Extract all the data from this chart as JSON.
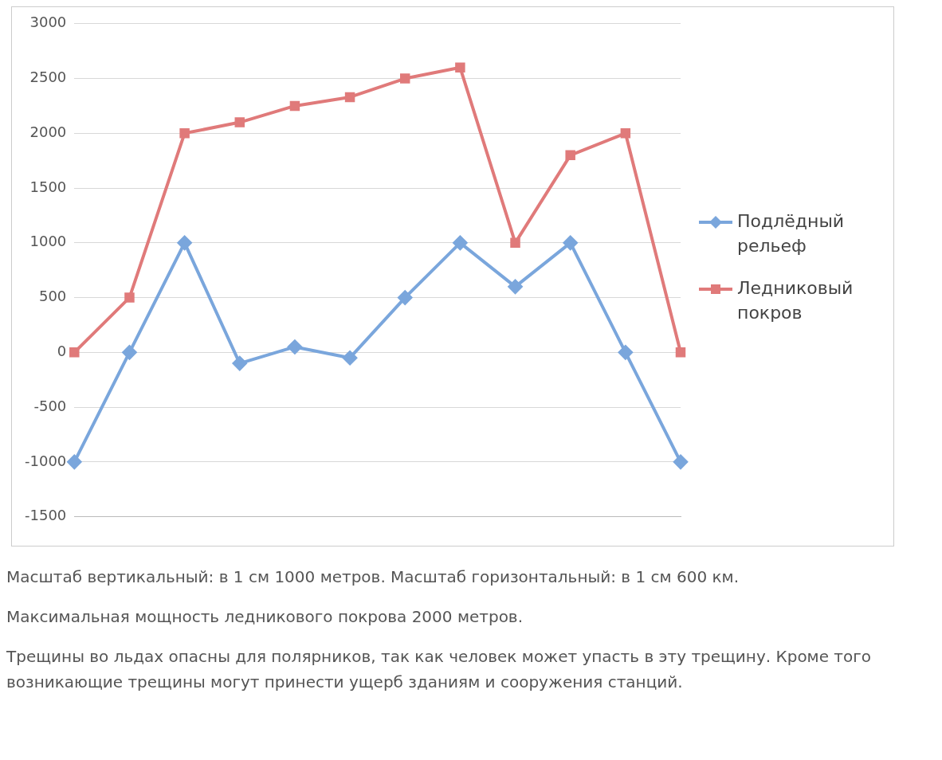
{
  "chart_data": {
    "type": "line",
    "categories": [
      null,
      null,
      null,
      null,
      null,
      null,
      null,
      null,
      null,
      null,
      null,
      null
    ],
    "series": [
      {
        "name": "Подлёдный рельеф",
        "color": "#7aa6dc",
        "marker": "diamond",
        "values": [
          -1000,
          0,
          1000,
          -100,
          50,
          -50,
          500,
          1000,
          600,
          1000,
          0,
          -1000
        ]
      },
      {
        "name": "Ледниковый покров",
        "color": "#e07a7a",
        "marker": "square",
        "values": [
          0,
          500,
          2000,
          2100,
          2250,
          2330,
          2500,
          2600,
          1000,
          1800,
          2000,
          0
        ]
      }
    ],
    "ylim": [
      -1500,
      3000
    ],
    "yticks": [
      -1500,
      -1000,
      -500,
      0,
      500,
      1000,
      1500,
      2000,
      2500,
      3000
    ],
    "grid": "y",
    "legend": "right",
    "line_style": "solid",
    "annotations": [
      "Масштаб вертикальный: в 1 см 1000 метров. Масштаб горизонтальный: в 1 см 600 км.",
      "Максимальная мощность ледникового покрова 2000 метров.",
      "Трещины во льдах опасны для полярников, так как человек может упасть в эту трещину. Кроме того возникающие трещины могут принести ущерб зданиям и сооружения станций."
    ]
  }
}
